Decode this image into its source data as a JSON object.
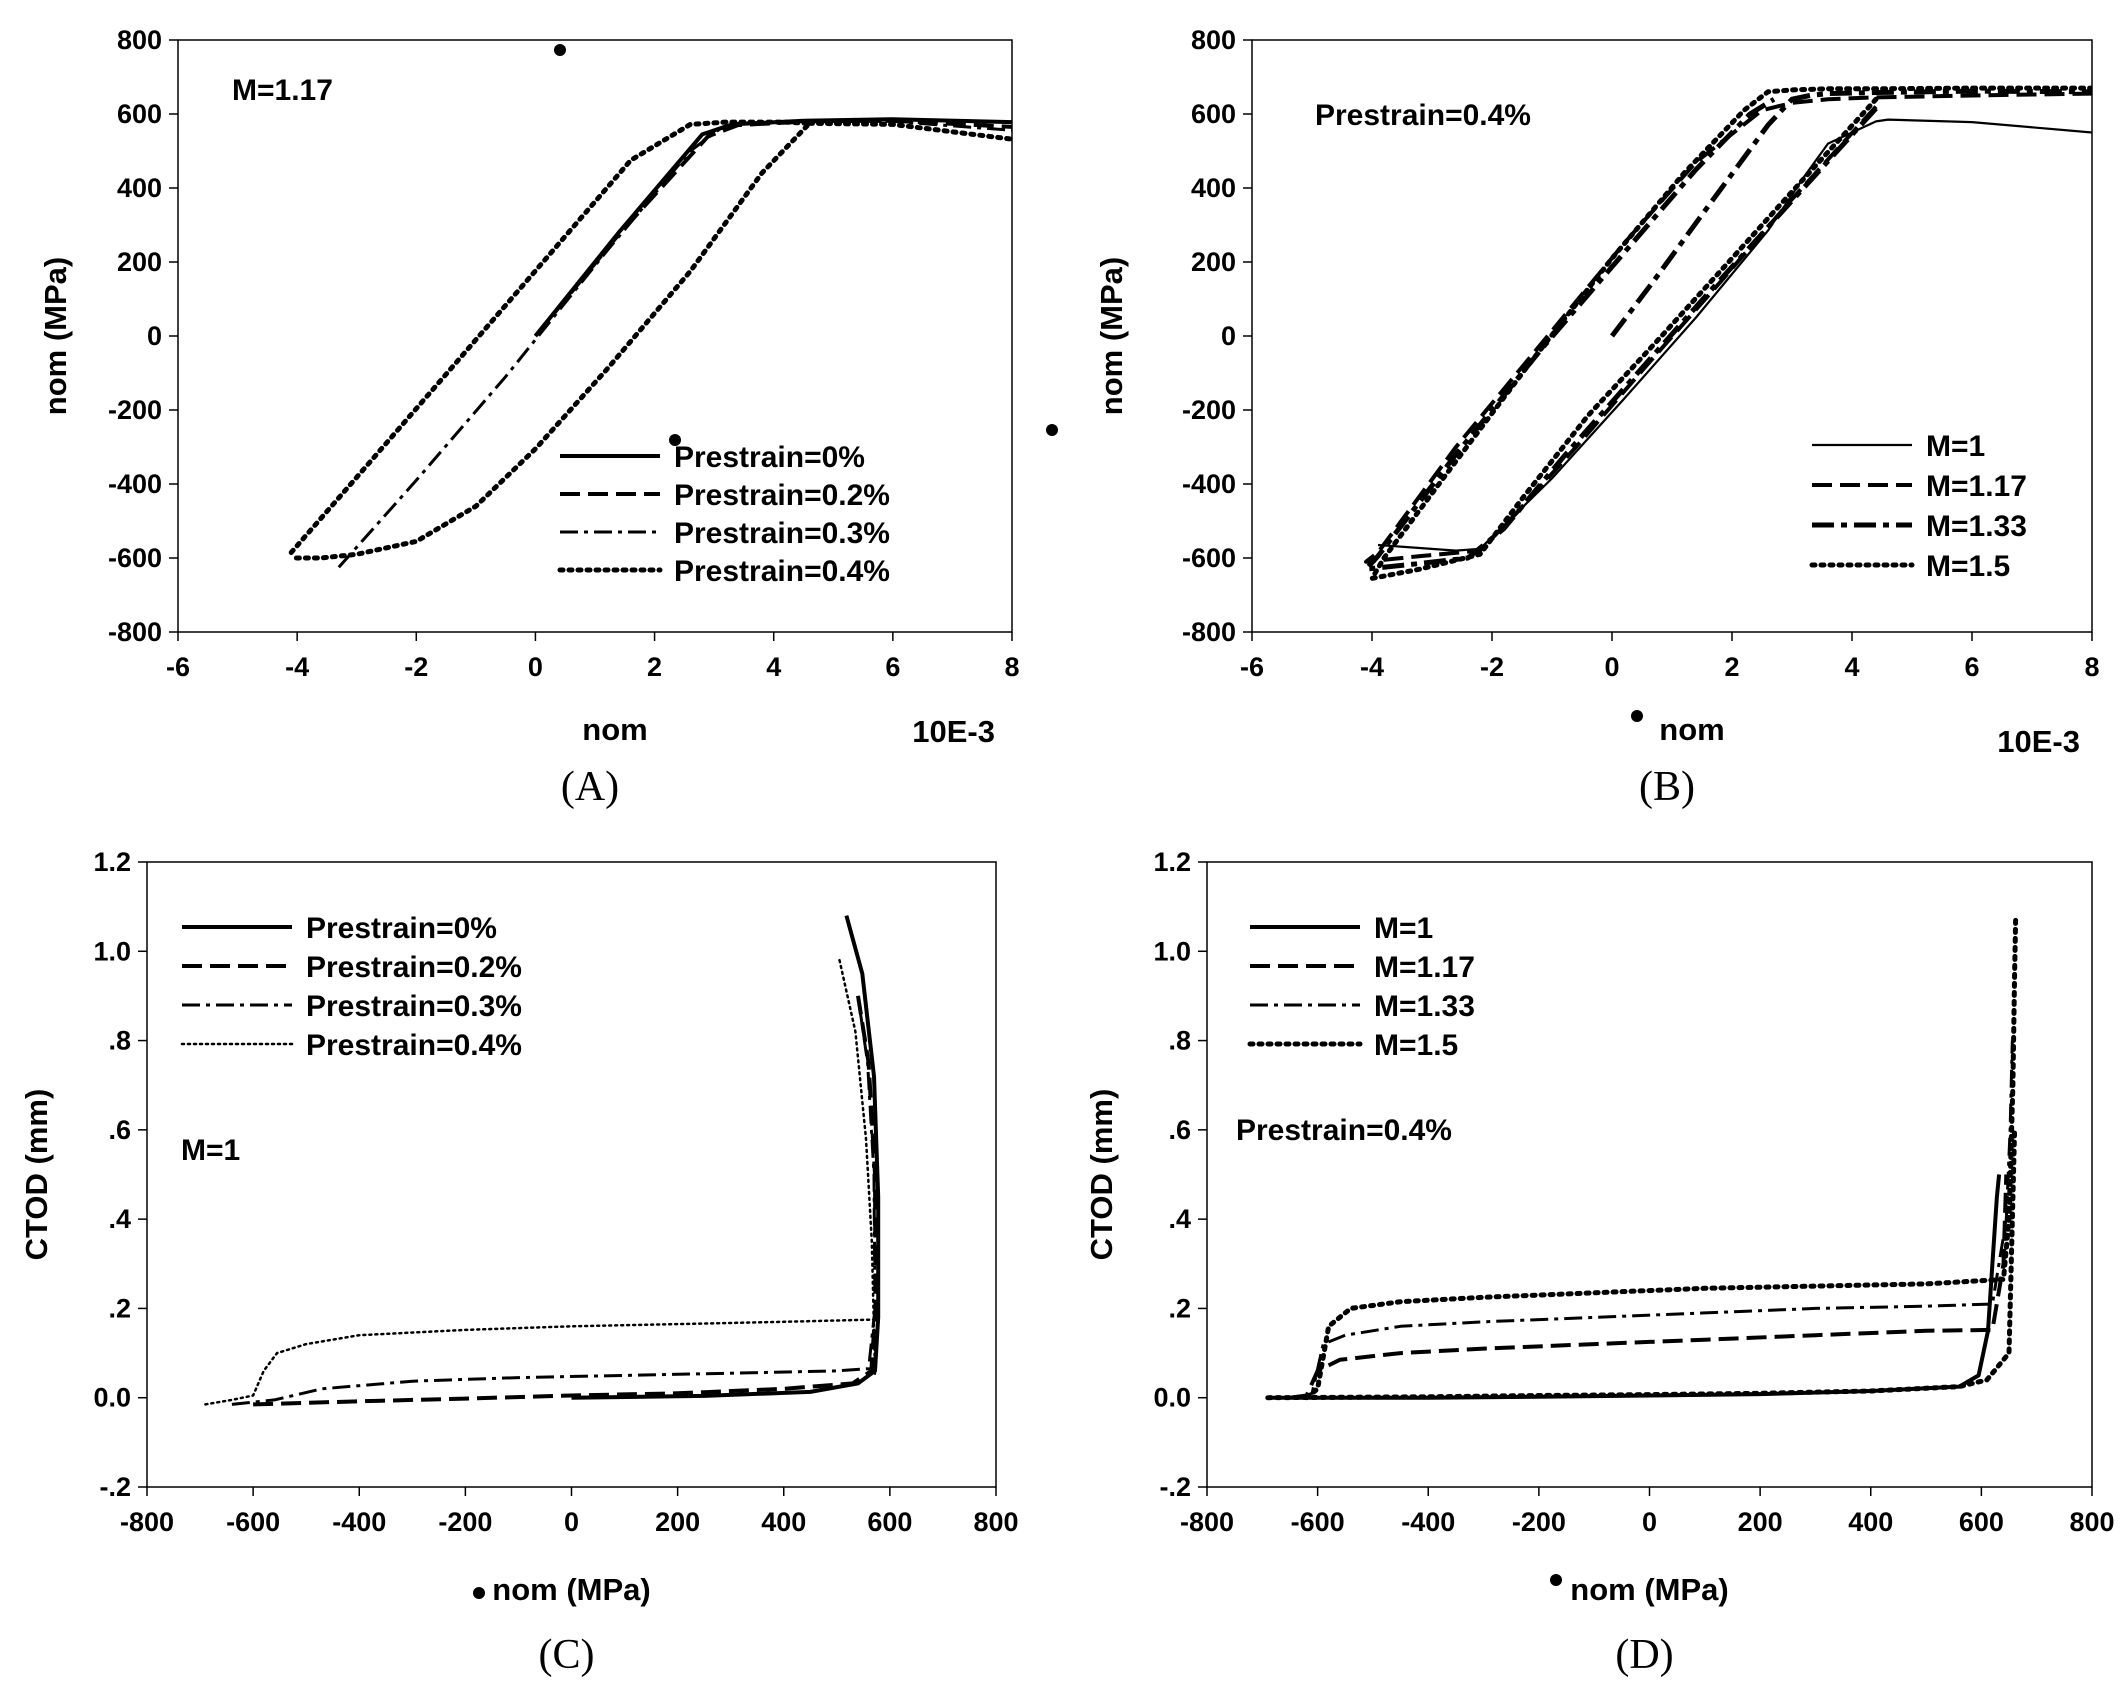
{
  "line_styles": {
    "solid": {
      "dash": "",
      "width": 4
    },
    "solid-thin": {
      "dash": "",
      "width": 2.2
    },
    "dashed": {
      "dash": "20 8",
      "width": 4
    },
    "dashdot": {
      "dash": "18 6 4 6",
      "width": 3
    },
    "dashdot-heavy": {
      "dash": "22 7 6 7",
      "width": 5
    },
    "dotted": {
      "dash": "3 6",
      "width": 5
    },
    "dotted-thin": {
      "dash": "2 4",
      "width": 2.5
    }
  },
  "chart_data": [
    {
      "id": "A",
      "type": "line",
      "panel_label": "(A)",
      "xlabel": "nom",
      "x_unit_note": "10E-3",
      "ylabel": "nom (MPa)",
      "xlim": [
        -6,
        8
      ],
      "ylim": [
        -800,
        800
      ],
      "xticks": [
        "-6",
        "-4",
        "-2",
        "0",
        "2",
        "4",
        "6",
        "8"
      ],
      "yticks": [
        "-800",
        "-600",
        "-400",
        "-200",
        "0",
        "200",
        "400",
        "600",
        "800"
      ],
      "annotation": "M=1.17",
      "legend_position": "bottom-right",
      "series": [
        {
          "name": "Prestrain=0%",
          "style": "solid",
          "x": [
            0,
            1.4,
            2.8,
            3.3,
            4.5,
            6,
            8
          ],
          "y": [
            0,
            280,
            545,
            572,
            582,
            586,
            578
          ]
        },
        {
          "name": "Prestrain=0.2%",
          "style": "dashed",
          "x": [
            0,
            1.4,
            2.9,
            3.4,
            4.6,
            6,
            8
          ],
          "y": [
            0,
            275,
            540,
            570,
            580,
            582,
            565
          ]
        },
        {
          "name": "Prestrain=0.3%",
          "style": "dashdot",
          "x": [
            -3.3,
            -2,
            -0.5,
            1.2,
            2.6,
            3.1,
            3.5,
            4.6,
            6,
            8
          ],
          "y": [
            -625,
            -390,
            -110,
            230,
            500,
            560,
            575,
            580,
            580,
            556
          ]
        },
        {
          "name": "Prestrain=0.4%",
          "style": "dotted",
          "x": [
            -4.1,
            -2.8,
            -1.4,
            0.1,
            1.6,
            2.6,
            3.2,
            4.2,
            4.6,
            3.8,
            2.6,
            1.2,
            0,
            -1,
            -2,
            -3,
            -3.6,
            -4.1
          ],
          "y": [
            -585,
            -345,
            -85,
            195,
            475,
            572,
            578,
            578,
            575,
            440,
            175,
            -90,
            -305,
            -460,
            -555,
            -590,
            -600,
            -600
          ]
        },
        {
          "name": "",
          "style": "dotted",
          "x": [
            4.6,
            6,
            8
          ],
          "y": [
            575,
            572,
            532
          ]
        }
      ]
    },
    {
      "id": "B",
      "type": "line",
      "panel_label": "(B)",
      "xlabel": "nom",
      "x_unit_note": "10E-3",
      "ylabel": "nom (MPa)",
      "xlim": [
        -6,
        8
      ],
      "ylim": [
        -800,
        800
      ],
      "xticks": [
        "-6",
        "-4",
        "-2",
        "0",
        "2",
        "4",
        "6",
        "8"
      ],
      "yticks": [
        "-800",
        "-600",
        "-400",
        "-200",
        "0",
        "200",
        "400",
        "600",
        "800"
      ],
      "annotation": "Prestrain=0.4%",
      "legend_position": "bottom-right",
      "series": [
        {
          "name": "M=1",
          "style": "solid-thin",
          "x": [
            -3.9,
            -2.6,
            -2.2,
            -1,
            0.2,
            1.4,
            2.6,
            3.2,
            3.6,
            4.4,
            4.6,
            6,
            8
          ],
          "y": [
            -565,
            -580,
            -575,
            -385,
            -170,
            50,
            285,
            430,
            520,
            580,
            585,
            578,
            550
          ]
        },
        {
          "name": "M=1.17",
          "style": "dashed",
          "x": [
            4.4,
            3,
            1.8,
            0.6,
            -0.6,
            -1.6,
            -2.2,
            -3.2,
            -4.1,
            -3.9,
            -2.6,
            -1.2,
            0.2,
            1.4,
            2.5,
            3,
            3.6,
            4.4,
            6,
            8
          ],
          "y": [
            620,
            370,
            145,
            -75,
            -300,
            -480,
            -580,
            -595,
            -610,
            -585,
            -300,
            -25,
            250,
            470,
            610,
            630,
            640,
            645,
            650,
            655
          ]
        },
        {
          "name": "M=1.33",
          "style": "dashdot-heavy",
          "x": [
            0,
            0.7,
            1.6,
            2.6,
            3,
            3.3,
            3.6,
            4.4,
            6,
            8
          ],
          "y": [
            0,
            150,
            350,
            570,
            640,
            650,
            655,
            658,
            662,
            660
          ]
        },
        {
          "name": "",
          "style": "dashdot-heavy",
          "x": [
            4.4,
            2.8,
            1.6,
            0.4,
            -0.8,
            -1.8,
            -2.4,
            -3.2,
            -4.1,
            -3.9,
            -2.6,
            -1.2,
            0.2,
            1.4,
            2.3,
            2.7
          ],
          "y": [
            615,
            330,
            115,
            -105,
            -325,
            -520,
            -600,
            -615,
            -630,
            -595,
            -320,
            -40,
            225,
            450,
            600,
            640
          ]
        },
        {
          "name": "M=1.5",
          "style": "dotted",
          "x": [
            4.4,
            3,
            2,
            0.8,
            -0.4,
            -1.5,
            -2.2,
            -3.2,
            -4,
            -3.8,
            -2.7,
            -1.4,
            0,
            1.2,
            2.2,
            2.6,
            3,
            3.6,
            4.4,
            6,
            8
          ],
          "y": [
            640,
            390,
            210,
            -5,
            -215,
            -440,
            -590,
            -630,
            -655,
            -600,
            -360,
            -80,
            210,
            440,
            610,
            660,
            665,
            668,
            668,
            670,
            670
          ]
        }
      ]
    },
    {
      "id": "C",
      "type": "line",
      "panel_label": "(C)",
      "xlabel": "nom (MPa)",
      "ylabel": "CTOD (mm)",
      "xlim": [
        -800,
        800
      ],
      "ylim": [
        -0.2,
        1.2
      ],
      "xticks": [
        "-800",
        "-600",
        "-400",
        "-200",
        "0",
        "200",
        "400",
        "600",
        "800"
      ],
      "yticks": [
        "-.2",
        "0.0",
        ".2",
        ".4",
        ".6",
        ".8",
        "1.0",
        "1.2"
      ],
      "annotation": "M=1",
      "legend_position": "top-left",
      "series": [
        {
          "name": "Prestrain=0%",
          "style": "solid",
          "x": [
            0,
            250,
            450,
            540,
            572,
            578,
            578,
            570,
            548,
            518
          ],
          "y": [
            0,
            0.004,
            0.013,
            0.032,
            0.06,
            0.18,
            0.45,
            0.72,
            0.95,
            1.08
          ]
        },
        {
          "name": "Prestrain=0.2%",
          "style": "dashed",
          "x": [
            -600,
            -400,
            -200,
            0,
            200,
            400,
            530,
            565,
            573,
            572,
            560,
            540
          ],
          "y": [
            -0.015,
            -0.008,
            -0.002,
            0.005,
            0.01,
            0.02,
            0.032,
            0.06,
            0.2,
            0.5,
            0.75,
            0.9
          ]
        },
        {
          "name": "Prestrain=0.3%",
          "style": "dashdot",
          "x": [
            -640,
            -560,
            -470,
            -300,
            -100,
            100,
            300,
            500,
            560,
            572,
            570,
            558,
            540
          ],
          "y": [
            -0.015,
            -0.005,
            0.02,
            0.037,
            0.045,
            0.05,
            0.055,
            0.06,
            0.065,
            0.2,
            0.5,
            0.75,
            0.9
          ]
        },
        {
          "name": "Prestrain=0.4%",
          "style": "dotted-thin",
          "x": [
            -690,
            -640,
            -600,
            -580,
            -555,
            -500,
            -400,
            -200,
            0,
            200,
            400,
            570
          ],
          "y": [
            -0.015,
            -0.005,
            0.005,
            0.06,
            0.1,
            0.12,
            0.14,
            0.152,
            0.16,
            0.165,
            0.17,
            0.175
          ]
        },
        {
          "name": "",
          "style": "dotted-thin",
          "x": [
            505,
            535,
            555,
            566,
            570,
            572
          ],
          "y": [
            0.98,
            0.82,
            0.58,
            0.35,
            0.15,
            0.05
          ]
        }
      ]
    },
    {
      "id": "D",
      "type": "line",
      "panel_label": "(D)",
      "xlabel": "nom (MPa)",
      "ylabel": "CTOD (mm)",
      "xlim": [
        -800,
        800
      ],
      "ylim": [
        -0.2,
        1.2
      ],
      "xticks": [
        "-800",
        "-600",
        "-400",
        "-200",
        "0",
        "200",
        "400",
        "600",
        "800"
      ],
      "yticks": [
        "-.2",
        "0.0",
        ".2",
        ".4",
        ".6",
        ".8",
        "1.0",
        "1.2"
      ],
      "annotation": "Prestrain=0.4%",
      "legend_position": "top-left",
      "series": [
        {
          "name": "M=1",
          "style": "solid",
          "x": [
            -690,
            -400,
            -200,
            0,
            200,
            400,
            560,
            595,
            612,
            620,
            628,
            632
          ],
          "y": [
            0,
            0,
            0.002,
            0.005,
            0.008,
            0.015,
            0.025,
            0.05,
            0.15,
            0.3,
            0.45,
            0.5
          ]
        },
        {
          "name": "M=1.17",
          "style": "dashed",
          "x": [
            -650,
            -620,
            -600,
            -560,
            -450,
            -300,
            -100,
            100,
            300,
            500,
            620,
            640,
            645
          ],
          "y": [
            0,
            0.005,
            0.06,
            0.085,
            0.1,
            0.11,
            0.12,
            0.13,
            0.14,
            0.15,
            0.152,
            0.3,
            0.5
          ]
        },
        {
          "name": "M=1.33",
          "style": "dashdot",
          "x": [
            -630,
            -610,
            -590,
            -550,
            -450,
            -300,
            -100,
            100,
            300,
            500,
            620,
            645,
            652,
            656
          ],
          "y": [
            0,
            0.01,
            0.12,
            0.14,
            0.16,
            0.17,
            0.18,
            0.19,
            0.2,
            0.205,
            0.21,
            0.4,
            0.6,
            0.8
          ]
        },
        {
          "name": "M=1.5",
          "style": "dotted",
          "x": [
            -620,
            -600,
            -580,
            -540,
            -450,
            -300,
            -100,
            100,
            300,
            500,
            640,
            650,
            657,
            660,
            662
          ],
          "y": [
            0,
            0.02,
            0.16,
            0.2,
            0.215,
            0.225,
            0.235,
            0.245,
            0.25,
            0.255,
            0.265,
            0.4,
            0.7,
            0.95,
            1.08
          ]
        },
        {
          "name": "",
          "style": "dotted",
          "x": [
            -690,
            -400,
            -200,
            0,
            200,
            400,
            560,
            610,
            650,
            660
          ],
          "y": [
            0,
            0.002,
            0.005,
            0.007,
            0.01,
            0.015,
            0.025,
            0.04,
            0.1,
            0.6
          ]
        }
      ]
    }
  ]
}
